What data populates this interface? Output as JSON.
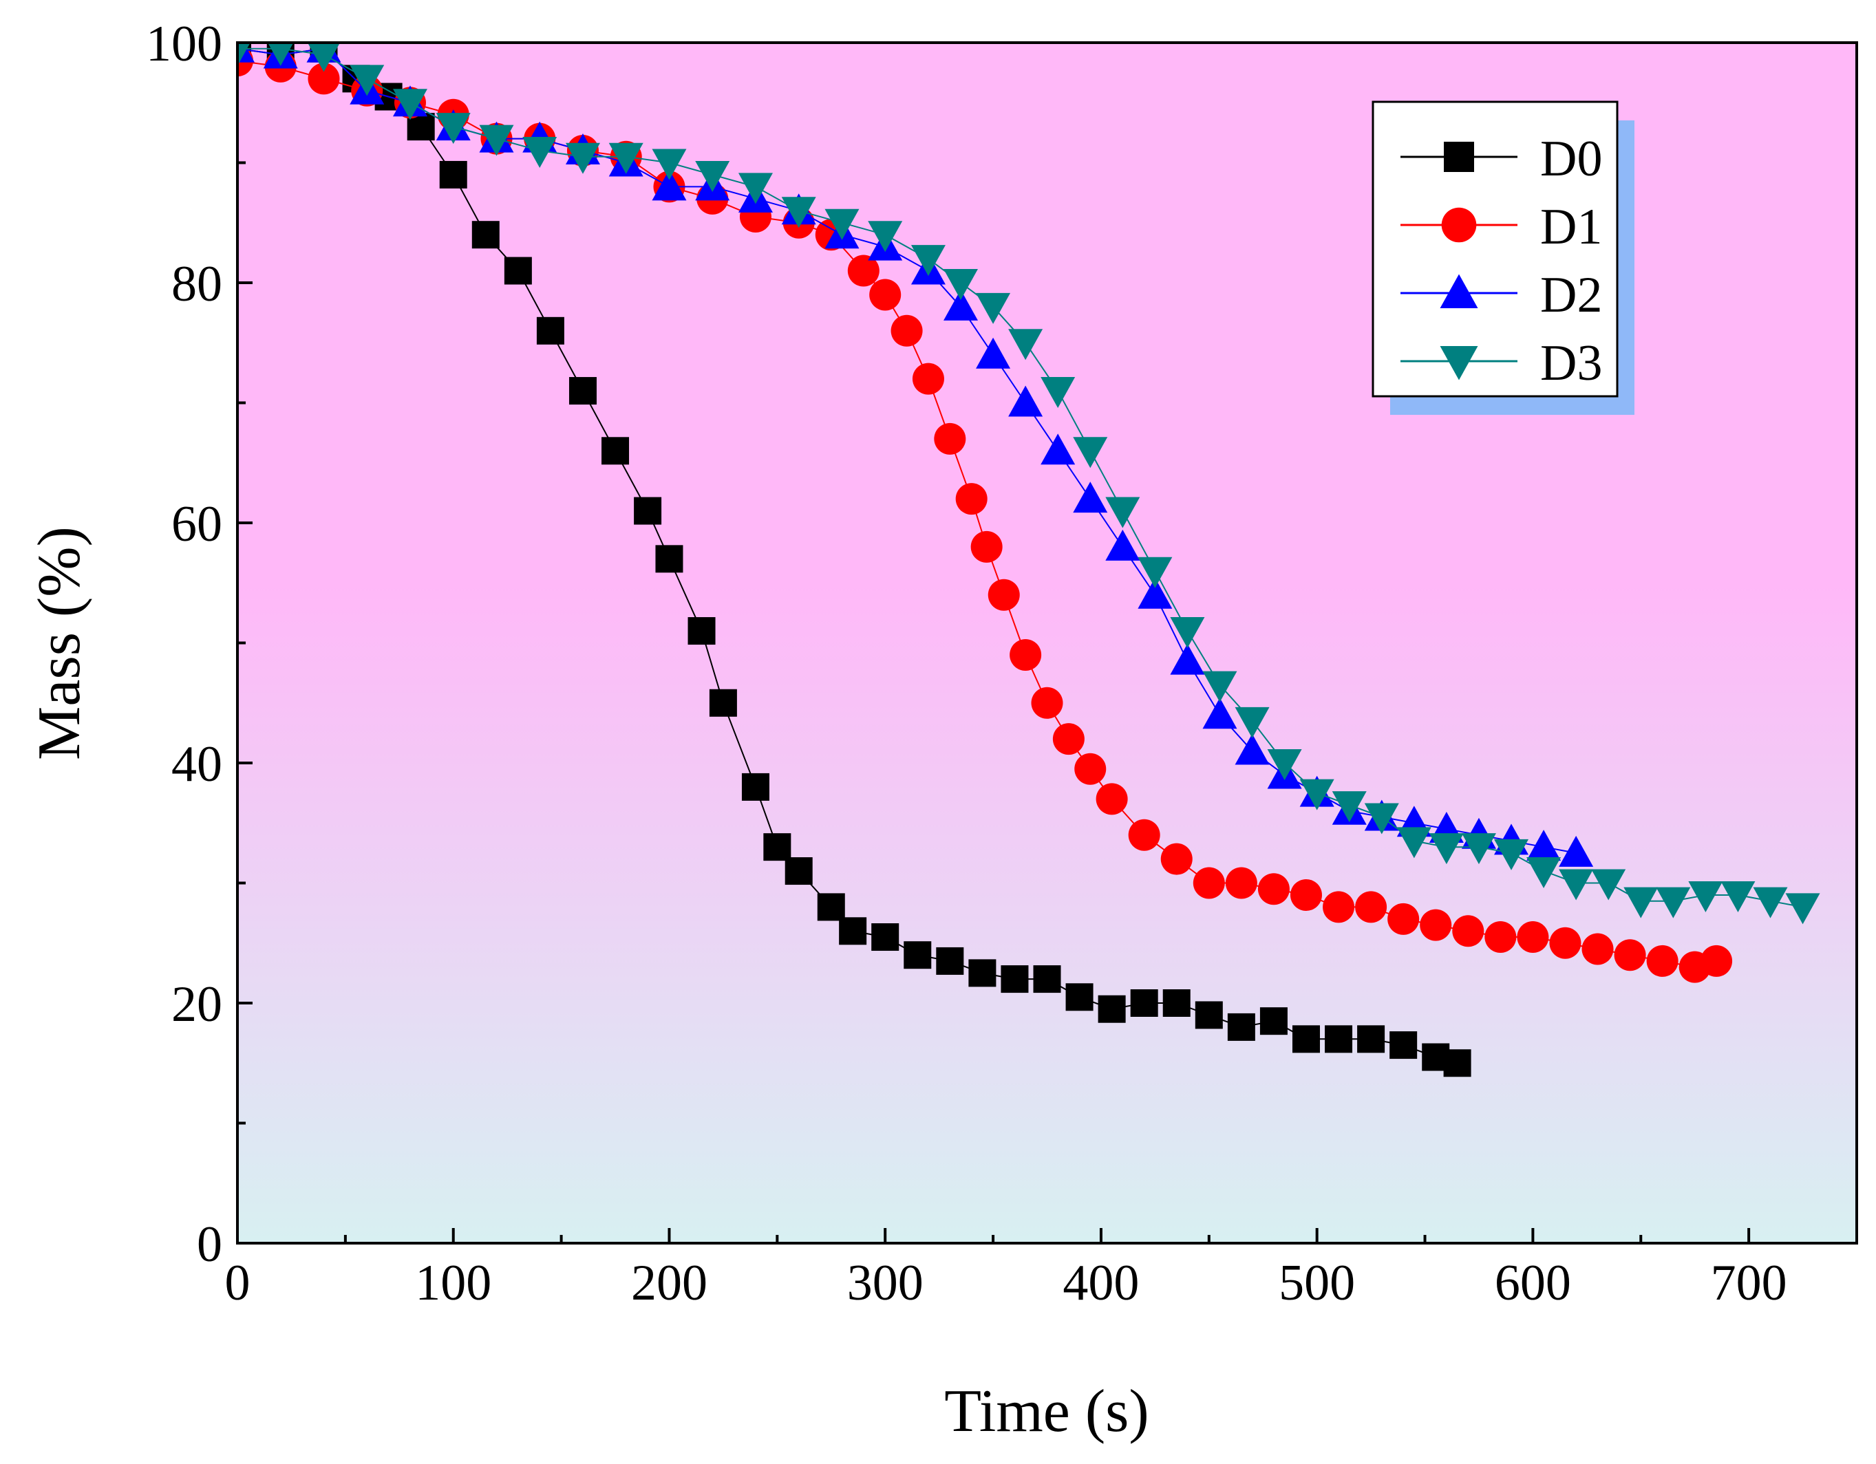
{
  "colors": {
    "bg_top": "#ffb8f8",
    "bg_bottom": "#d8f0f2",
    "legend_shadow": "#8fb8f8",
    "D0": "#000000",
    "D1": "#ff0000",
    "D2": "#0000ff",
    "D3": "#008080"
  },
  "chart_data": {
    "type": "scatter",
    "title": "",
    "xlabel": "Time (s)",
    "ylabel": "Mass (%)",
    "xlim": [
      0,
      750
    ],
    "ylim": [
      0,
      100
    ],
    "xticks": [
      0,
      100,
      200,
      300,
      400,
      500,
      600,
      700
    ],
    "yticks": [
      0,
      20,
      40,
      60,
      80,
      100
    ],
    "grid": false,
    "legend_position": "top-right",
    "series": [
      {
        "name": "D0",
        "marker": "square",
        "color": "#000000",
        "points": [
          [
            0,
            99.5
          ],
          [
            20,
            99
          ],
          [
            40,
            99.5
          ],
          [
            55,
            97
          ],
          [
            70,
            95.5
          ],
          [
            85,
            93
          ],
          [
            100,
            89
          ],
          [
            115,
            84
          ],
          [
            130,
            81
          ],
          [
            145,
            76
          ],
          [
            160,
            71
          ],
          [
            175,
            66
          ],
          [
            190,
            61
          ],
          [
            200,
            57
          ],
          [
            215,
            51
          ],
          [
            225,
            45
          ],
          [
            240,
            38
          ],
          [
            250,
            33
          ],
          [
            260,
            31
          ],
          [
            275,
            28
          ],
          [
            285,
            26
          ],
          [
            300,
            25.5
          ],
          [
            315,
            24
          ],
          [
            330,
            23.5
          ],
          [
            345,
            22.5
          ],
          [
            360,
            22
          ],
          [
            375,
            22
          ],
          [
            390,
            20.5
          ],
          [
            405,
            19.5
          ],
          [
            420,
            20
          ],
          [
            435,
            20
          ],
          [
            450,
            19
          ],
          [
            465,
            18
          ],
          [
            480,
            18.5
          ],
          [
            495,
            17
          ],
          [
            510,
            17
          ],
          [
            525,
            17
          ],
          [
            540,
            16.5
          ],
          [
            555,
            15.5
          ],
          [
            565,
            15
          ]
        ]
      },
      {
        "name": "D1",
        "marker": "circle",
        "color": "#ff0000",
        "points": [
          [
            0,
            98.5
          ],
          [
            20,
            98
          ],
          [
            40,
            97
          ],
          [
            60,
            96
          ],
          [
            80,
            95
          ],
          [
            100,
            94
          ],
          [
            120,
            92
          ],
          [
            140,
            92
          ],
          [
            160,
            91
          ],
          [
            180,
            90.5
          ],
          [
            200,
            88
          ],
          [
            220,
            87
          ],
          [
            240,
            85.5
          ],
          [
            260,
            85
          ],
          [
            275,
            84
          ],
          [
            290,
            81
          ],
          [
            300,
            79
          ],
          [
            310,
            76
          ],
          [
            320,
            72
          ],
          [
            330,
            67
          ],
          [
            340,
            62
          ],
          [
            347,
            58
          ],
          [
            355,
            54
          ],
          [
            365,
            49
          ],
          [
            375,
            45
          ],
          [
            385,
            42
          ],
          [
            395,
            39.5
          ],
          [
            405,
            37
          ],
          [
            420,
            34
          ],
          [
            435,
            32
          ],
          [
            450,
            30
          ],
          [
            465,
            30
          ],
          [
            480,
            29.5
          ],
          [
            495,
            29
          ],
          [
            510,
            28
          ],
          [
            525,
            28
          ],
          [
            540,
            27
          ],
          [
            555,
            26.5
          ],
          [
            570,
            26
          ],
          [
            585,
            25.5
          ],
          [
            600,
            25.5
          ],
          [
            615,
            25
          ],
          [
            630,
            24.5
          ],
          [
            645,
            24
          ],
          [
            660,
            23.5
          ],
          [
            675,
            23
          ],
          [
            685,
            23.5
          ]
        ]
      },
      {
        "name": "D2",
        "marker": "triangle-up",
        "color": "#0000ff",
        "points": [
          [
            0,
            99.5
          ],
          [
            20,
            99
          ],
          [
            40,
            99.5
          ],
          [
            60,
            96
          ],
          [
            80,
            95
          ],
          [
            100,
            93
          ],
          [
            120,
            92
          ],
          [
            140,
            92
          ],
          [
            160,
            91
          ],
          [
            180,
            90
          ],
          [
            200,
            88
          ],
          [
            220,
            88
          ],
          [
            240,
            87
          ],
          [
            260,
            86
          ],
          [
            280,
            84
          ],
          [
            300,
            83
          ],
          [
            320,
            81
          ],
          [
            335,
            78
          ],
          [
            350,
            74
          ],
          [
            365,
            70
          ],
          [
            380,
            66
          ],
          [
            395,
            62
          ],
          [
            410,
            58
          ],
          [
            425,
            54
          ],
          [
            440,
            48.5
          ],
          [
            455,
            44
          ],
          [
            470,
            41
          ],
          [
            485,
            39
          ],
          [
            500,
            37.5
          ],
          [
            515,
            36
          ],
          [
            530,
            35.5
          ],
          [
            545,
            35
          ],
          [
            560,
            34.5
          ],
          [
            575,
            34
          ],
          [
            590,
            33.5
          ],
          [
            605,
            33
          ],
          [
            620,
            32.5
          ]
        ]
      },
      {
        "name": "D3",
        "marker": "triangle-down",
        "color": "#008080",
        "points": [
          [
            0,
            99.5
          ],
          [
            20,
            99.5
          ],
          [
            40,
            99
          ],
          [
            60,
            97
          ],
          [
            80,
            95
          ],
          [
            100,
            93
          ],
          [
            120,
            92
          ],
          [
            140,
            91
          ],
          [
            160,
            90.5
          ],
          [
            180,
            90.5
          ],
          [
            200,
            90
          ],
          [
            220,
            89
          ],
          [
            240,
            88
          ],
          [
            260,
            86
          ],
          [
            280,
            85
          ],
          [
            300,
            84
          ],
          [
            320,
            82
          ],
          [
            335,
            80
          ],
          [
            350,
            78
          ],
          [
            365,
            75
          ],
          [
            380,
            71
          ],
          [
            395,
            66
          ],
          [
            410,
            61
          ],
          [
            425,
            56
          ],
          [
            440,
            51
          ],
          [
            455,
            46.5
          ],
          [
            470,
            43.5
          ],
          [
            485,
            40
          ],
          [
            500,
            37.5
          ],
          [
            515,
            36.5
          ],
          [
            530,
            35.5
          ],
          [
            545,
            33.5
          ],
          [
            560,
            33
          ],
          [
            575,
            33
          ],
          [
            590,
            32.5
          ],
          [
            605,
            31
          ],
          [
            620,
            30
          ],
          [
            635,
            30
          ],
          [
            650,
            28.5
          ],
          [
            665,
            28.5
          ],
          [
            680,
            29
          ],
          [
            695,
            29
          ],
          [
            710,
            28.5
          ],
          [
            725,
            28
          ]
        ]
      }
    ]
  }
}
